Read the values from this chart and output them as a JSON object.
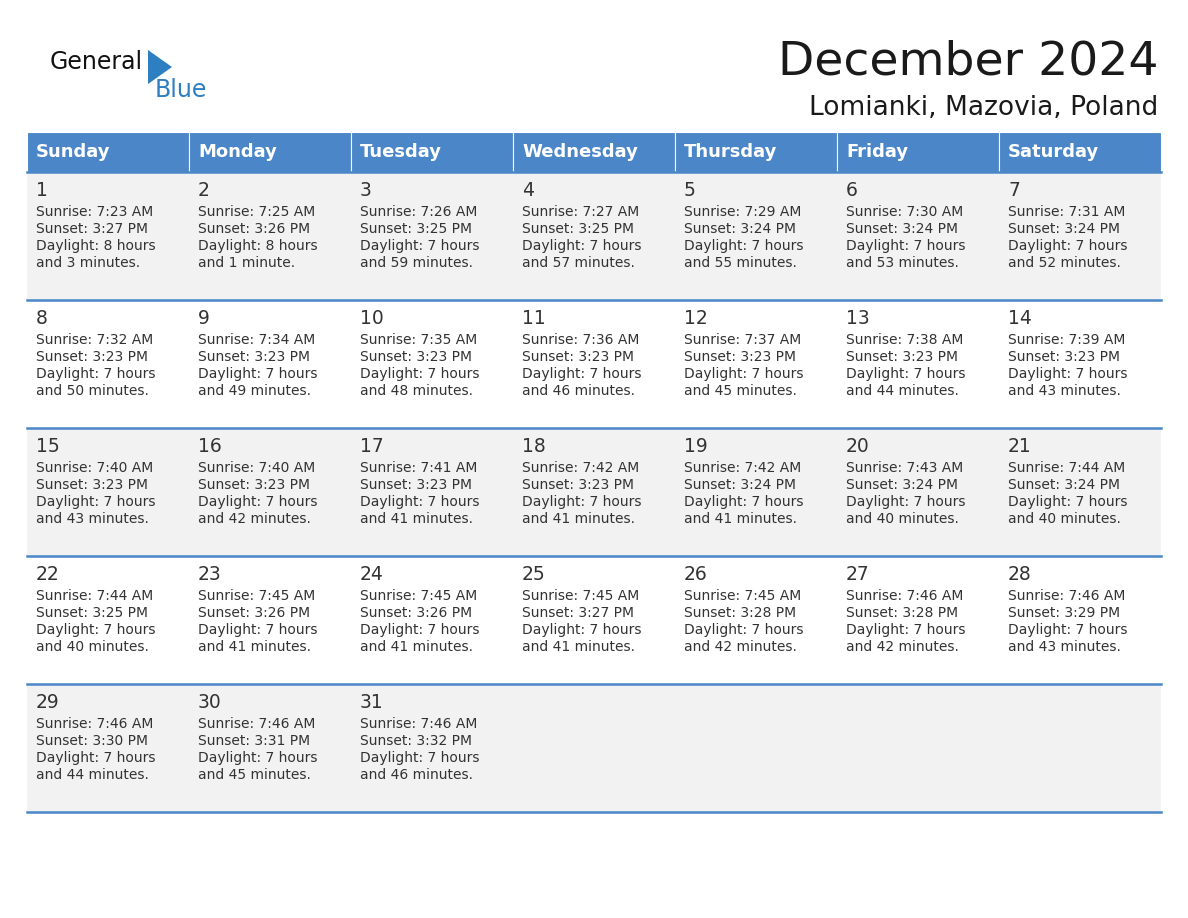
{
  "title": "December 2024",
  "subtitle": "Lomianki, Mazovia, Poland",
  "days_of_week": [
    "Sunday",
    "Monday",
    "Tuesday",
    "Wednesday",
    "Thursday",
    "Friday",
    "Saturday"
  ],
  "header_bg": "#4A86C8",
  "header_text": "#FFFFFF",
  "cell_bg_odd": "#F2F2F2",
  "cell_bg_even": "#FFFFFF",
  "cell_text": "#333333",
  "border_color": "#4A86C8",
  "title_color": "#1a1a1a",
  "subtitle_color": "#1a1a1a",
  "logo_general_color": "#1a1a1a",
  "logo_blue_color": "#2E7EC2",
  "logo_triangle_color": "#2E7EC2",
  "calendar_data": [
    [
      {
        "day": 1,
        "sunrise": "7:23 AM",
        "sunset": "3:27 PM",
        "daylight_line1": "8 hours",
        "daylight_line2": "and 3 minutes."
      },
      {
        "day": 2,
        "sunrise": "7:25 AM",
        "sunset": "3:26 PM",
        "daylight_line1": "8 hours",
        "daylight_line2": "and 1 minute."
      },
      {
        "day": 3,
        "sunrise": "7:26 AM",
        "sunset": "3:25 PM",
        "daylight_line1": "7 hours",
        "daylight_line2": "and 59 minutes."
      },
      {
        "day": 4,
        "sunrise": "7:27 AM",
        "sunset": "3:25 PM",
        "daylight_line1": "7 hours",
        "daylight_line2": "and 57 minutes."
      },
      {
        "day": 5,
        "sunrise": "7:29 AM",
        "sunset": "3:24 PM",
        "daylight_line1": "7 hours",
        "daylight_line2": "and 55 minutes."
      },
      {
        "day": 6,
        "sunrise": "7:30 AM",
        "sunset": "3:24 PM",
        "daylight_line1": "7 hours",
        "daylight_line2": "and 53 minutes."
      },
      {
        "day": 7,
        "sunrise": "7:31 AM",
        "sunset": "3:24 PM",
        "daylight_line1": "7 hours",
        "daylight_line2": "and 52 minutes."
      }
    ],
    [
      {
        "day": 8,
        "sunrise": "7:32 AM",
        "sunset": "3:23 PM",
        "daylight_line1": "7 hours",
        "daylight_line2": "and 50 minutes."
      },
      {
        "day": 9,
        "sunrise": "7:34 AM",
        "sunset": "3:23 PM",
        "daylight_line1": "7 hours",
        "daylight_line2": "and 49 minutes."
      },
      {
        "day": 10,
        "sunrise": "7:35 AM",
        "sunset": "3:23 PM",
        "daylight_line1": "7 hours",
        "daylight_line2": "and 48 minutes."
      },
      {
        "day": 11,
        "sunrise": "7:36 AM",
        "sunset": "3:23 PM",
        "daylight_line1": "7 hours",
        "daylight_line2": "and 46 minutes."
      },
      {
        "day": 12,
        "sunrise": "7:37 AM",
        "sunset": "3:23 PM",
        "daylight_line1": "7 hours",
        "daylight_line2": "and 45 minutes."
      },
      {
        "day": 13,
        "sunrise": "7:38 AM",
        "sunset": "3:23 PM",
        "daylight_line1": "7 hours",
        "daylight_line2": "and 44 minutes."
      },
      {
        "day": 14,
        "sunrise": "7:39 AM",
        "sunset": "3:23 PM",
        "daylight_line1": "7 hours",
        "daylight_line2": "and 43 minutes."
      }
    ],
    [
      {
        "day": 15,
        "sunrise": "7:40 AM",
        "sunset": "3:23 PM",
        "daylight_line1": "7 hours",
        "daylight_line2": "and 43 minutes."
      },
      {
        "day": 16,
        "sunrise": "7:40 AM",
        "sunset": "3:23 PM",
        "daylight_line1": "7 hours",
        "daylight_line2": "and 42 minutes."
      },
      {
        "day": 17,
        "sunrise": "7:41 AM",
        "sunset": "3:23 PM",
        "daylight_line1": "7 hours",
        "daylight_line2": "and 41 minutes."
      },
      {
        "day": 18,
        "sunrise": "7:42 AM",
        "sunset": "3:23 PM",
        "daylight_line1": "7 hours",
        "daylight_line2": "and 41 minutes."
      },
      {
        "day": 19,
        "sunrise": "7:42 AM",
        "sunset": "3:24 PM",
        "daylight_line1": "7 hours",
        "daylight_line2": "and 41 minutes."
      },
      {
        "day": 20,
        "sunrise": "7:43 AM",
        "sunset": "3:24 PM",
        "daylight_line1": "7 hours",
        "daylight_line2": "and 40 minutes."
      },
      {
        "day": 21,
        "sunrise": "7:44 AM",
        "sunset": "3:24 PM",
        "daylight_line1": "7 hours",
        "daylight_line2": "and 40 minutes."
      }
    ],
    [
      {
        "day": 22,
        "sunrise": "7:44 AM",
        "sunset": "3:25 PM",
        "daylight_line1": "7 hours",
        "daylight_line2": "and 40 minutes."
      },
      {
        "day": 23,
        "sunrise": "7:45 AM",
        "sunset": "3:26 PM",
        "daylight_line1": "7 hours",
        "daylight_line2": "and 41 minutes."
      },
      {
        "day": 24,
        "sunrise": "7:45 AM",
        "sunset": "3:26 PM",
        "daylight_line1": "7 hours",
        "daylight_line2": "and 41 minutes."
      },
      {
        "day": 25,
        "sunrise": "7:45 AM",
        "sunset": "3:27 PM",
        "daylight_line1": "7 hours",
        "daylight_line2": "and 41 minutes."
      },
      {
        "day": 26,
        "sunrise": "7:45 AM",
        "sunset": "3:28 PM",
        "daylight_line1": "7 hours",
        "daylight_line2": "and 42 minutes."
      },
      {
        "day": 27,
        "sunrise": "7:46 AM",
        "sunset": "3:28 PM",
        "daylight_line1": "7 hours",
        "daylight_line2": "and 42 minutes."
      },
      {
        "day": 28,
        "sunrise": "7:46 AM",
        "sunset": "3:29 PM",
        "daylight_line1": "7 hours",
        "daylight_line2": "and 43 minutes."
      }
    ],
    [
      {
        "day": 29,
        "sunrise": "7:46 AM",
        "sunset": "3:30 PM",
        "daylight_line1": "7 hours",
        "daylight_line2": "and 44 minutes."
      },
      {
        "day": 30,
        "sunrise": "7:46 AM",
        "sunset": "3:31 PM",
        "daylight_line1": "7 hours",
        "daylight_line2": "and 45 minutes."
      },
      {
        "day": 31,
        "sunrise": "7:46 AM",
        "sunset": "3:32 PM",
        "daylight_line1": "7 hours",
        "daylight_line2": "and 46 minutes."
      },
      null,
      null,
      null,
      null
    ]
  ]
}
